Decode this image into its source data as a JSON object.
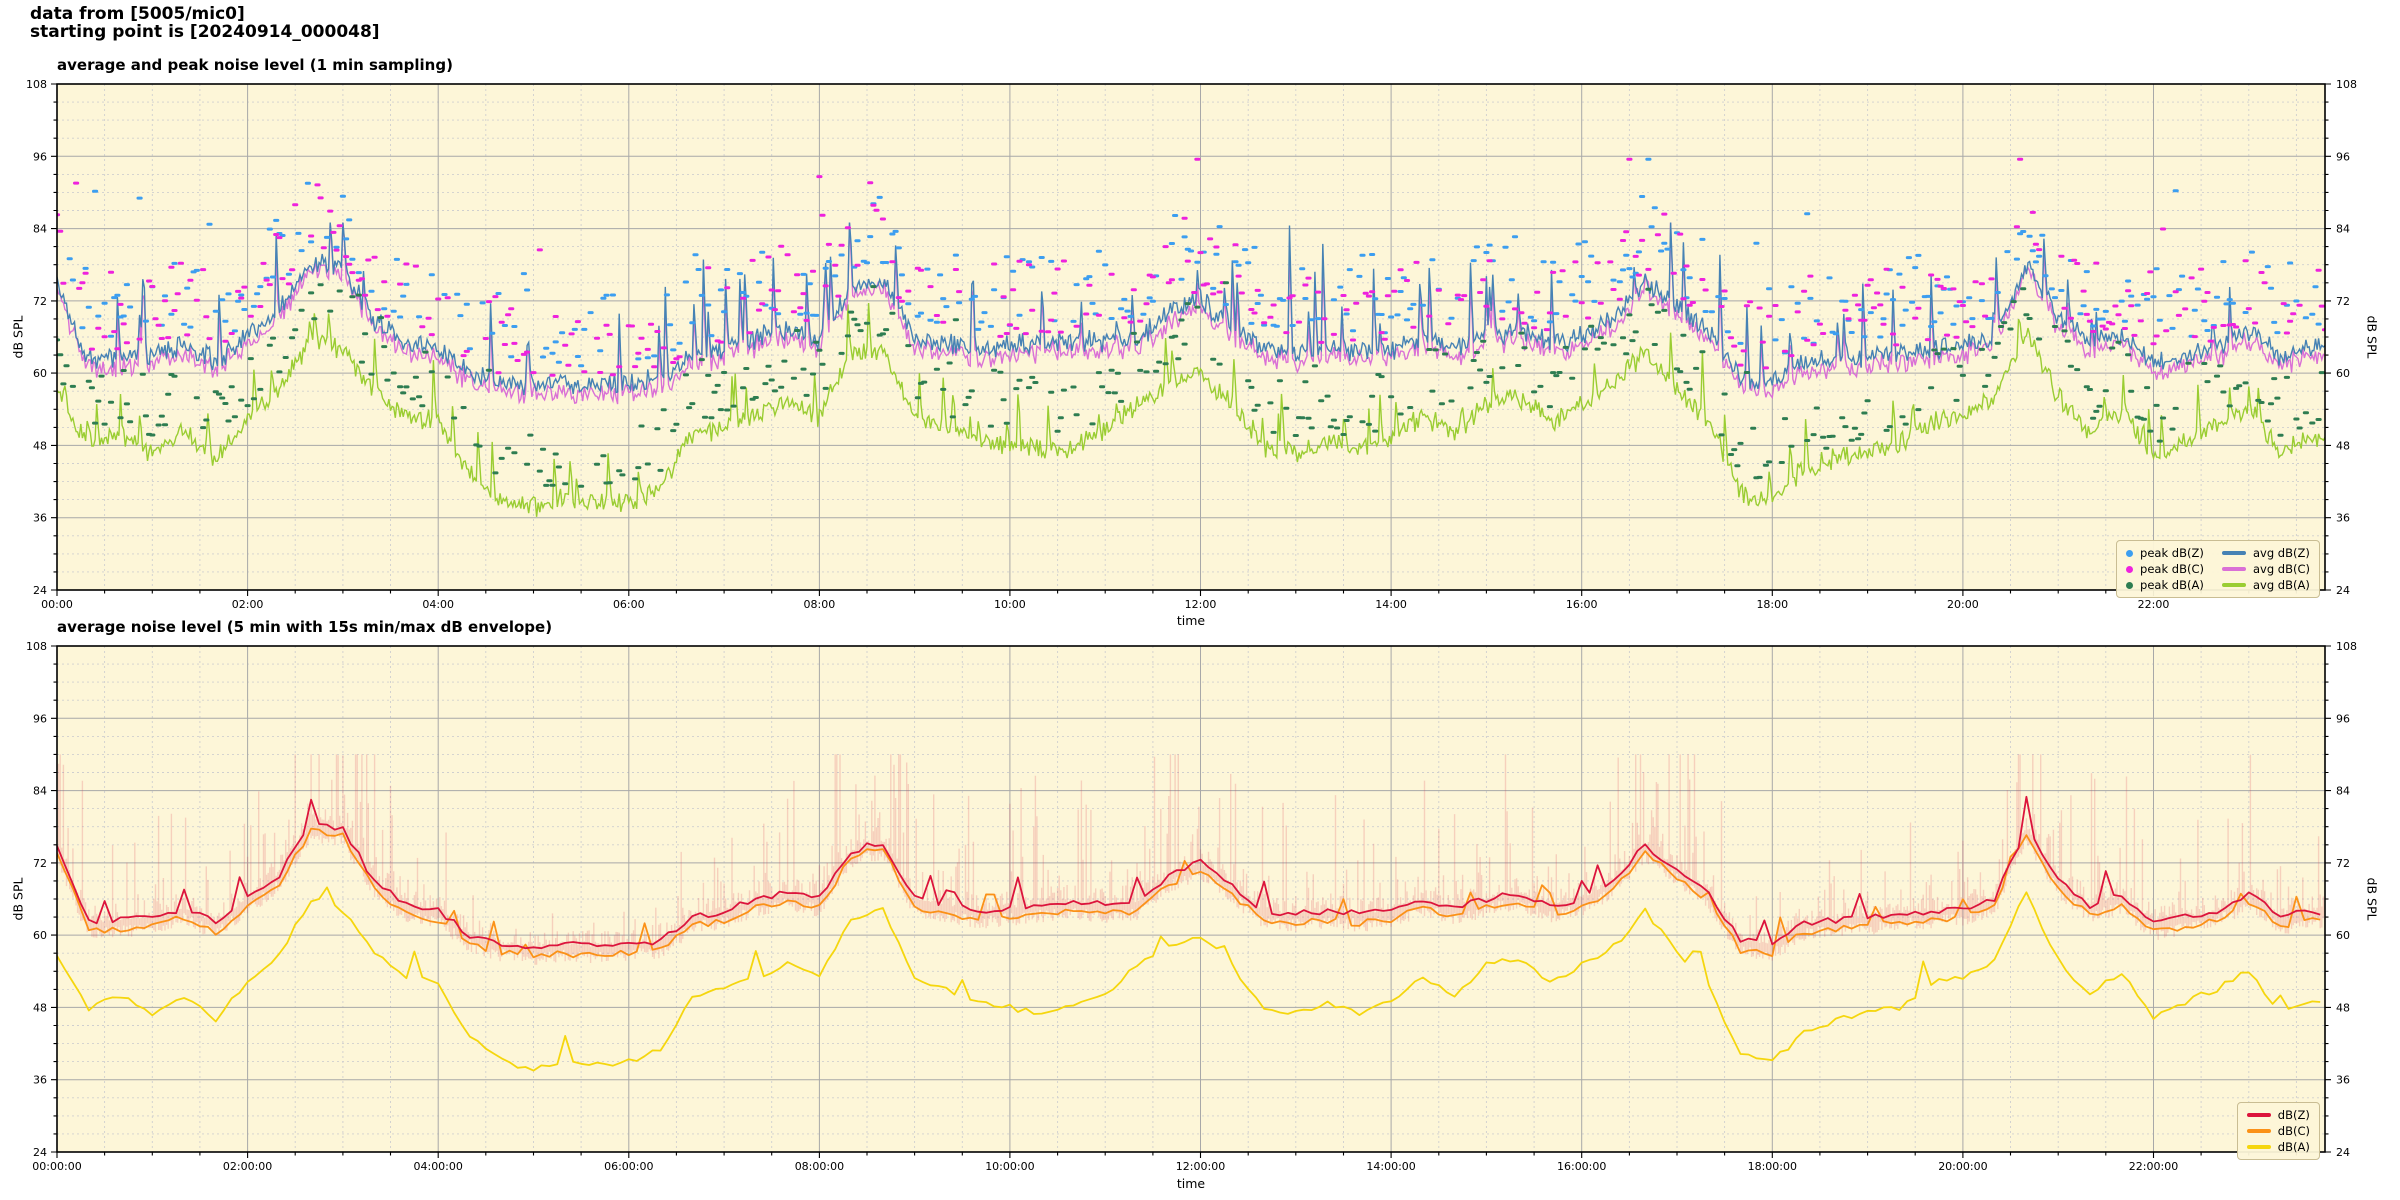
{
  "header": {
    "line1": "data from [5005/mic0]",
    "line2": "starting point is [20240914_000048]"
  },
  "colors": {
    "page_bg": "#ffffff",
    "plot_bg": "#fdf6d8",
    "grid_major": "#a8a8a8",
    "grid_minor": "#cfcfcf",
    "spine": "#000000",
    "text": "#000000",
    "legend_bg": "#fdf6d8",
    "legend_border": "#c9bd93"
  },
  "chart_data": {
    "x_unit": "hours",
    "x_range": [
      0,
      23.8
    ],
    "sample_step_min": 20,
    "series_base": {
      "avg_dbz": [
        75,
        62,
        62.5,
        63,
        64.5,
        62,
        66,
        70,
        78.5,
        77.5,
        69,
        65,
        64,
        60,
        58.5,
        58,
        58.5,
        58,
        58.5,
        59,
        63,
        64,
        66,
        67,
        66,
        74,
        75.5,
        66,
        65,
        64,
        64.5,
        65,
        65.5,
        65,
        65.5,
        70,
        72,
        68,
        64,
        63.5,
        64,
        63.5,
        64,
        66,
        64.5,
        66,
        67,
        65,
        66,
        69,
        75,
        71,
        67,
        59,
        58.5,
        62,
        62.5,
        63,
        63.5,
        64,
        64.5,
        66,
        78,
        69,
        65,
        66.5,
        62,
        63,
        64,
        67,
        63,
        64,
        63
      ],
      "avg_dbc": [
        74,
        60.5,
        61,
        61.5,
        63,
        60.5,
        64.5,
        68.5,
        77.5,
        76.5,
        67.5,
        63.5,
        62.5,
        58.5,
        57,
        56.5,
        57,
        56.5,
        57,
        57.5,
        61.5,
        62.5,
        64.5,
        65.5,
        64.5,
        73,
        74.5,
        64.5,
        63.5,
        62.5,
        63,
        63.5,
        64,
        63.5,
        64,
        68.5,
        70.5,
        66.5,
        62.5,
        62,
        62.5,
        62,
        62.5,
        64.5,
        63,
        64.5,
        65.5,
        63.5,
        64.5,
        67.5,
        74,
        69.5,
        65.5,
        57.5,
        57,
        60.5,
        61,
        61.5,
        62,
        62.5,
        63,
        64.5,
        77,
        67.5,
        63.5,
        65,
        60.5,
        61.5,
        62.5,
        65.5,
        61.5,
        62.5,
        61.5
      ],
      "avg_dba": [
        57,
        48,
        50,
        47,
        50,
        46,
        52,
        57,
        66,
        64,
        57,
        53,
        52,
        43,
        39,
        38,
        39,
        38.5,
        39,
        41,
        50,
        51,
        53,
        55,
        53,
        63,
        64,
        53,
        51,
        49,
        48,
        47,
        48,
        50,
        55,
        58,
        60,
        55,
        48,
        47,
        48.5,
        47,
        49,
        53,
        50,
        55,
        56,
        52,
        55,
        58,
        64,
        57,
        52,
        40,
        39,
        44,
        46,
        47,
        48,
        52,
        53,
        56,
        67,
        56,
        50,
        54,
        46,
        49,
        51,
        54,
        47,
        49,
        47
      ]
    },
    "charts": [
      {
        "type": "line+scatter",
        "title": "average and peak noise level (1 min sampling)",
        "xlabel": "time",
        "ylabel_left": "dB SPL",
        "ylabel_right": "dB SPL",
        "ylim": [
          24,
          108
        ],
        "y_major_ticks": [
          24,
          36,
          48,
          60,
          72,
          84,
          96,
          108
        ],
        "y_minor_step": 3,
        "x_major_tick_hours": [
          0,
          2,
          4,
          6,
          8,
          10,
          12,
          14,
          16,
          18,
          20,
          22
        ],
        "x_tick_labels": [
          "00:00",
          "02:00",
          "04:00",
          "06:00",
          "08:00",
          "10:00",
          "12:00",
          "14:00",
          "16:00",
          "18:00",
          "20:00",
          "22:00"
        ],
        "x_minor_step_hours": 0.5,
        "legend": [
          {
            "label": "peak dB(Z)",
            "type": "dot",
            "color": "#3c9ef0"
          },
          {
            "label": "avg dB(Z)",
            "type": "line",
            "color": "#4682B4"
          },
          {
            "label": "peak dB(C)",
            "type": "dot",
            "color": "#ee22dd"
          },
          {
            "label": "avg dB(C)",
            "type": "line",
            "color": "#DA70D6"
          },
          {
            "label": "peak dB(A)",
            "type": "dot",
            "color": "#2e7d51"
          },
          {
            "label": "avg dB(A)",
            "type": "line",
            "color": "#9ACD32"
          }
        ],
        "series": [
          {
            "name": "avg dB(A)",
            "base": "avg_dba",
            "color": "#9ACD32"
          },
          {
            "name": "avg dB(C)",
            "base": "avg_dbc",
            "color": "#DA70D6"
          },
          {
            "name": "avg dB(Z)",
            "base": "avg_dbz",
            "color": "#4682B4"
          }
        ],
        "scatter": [
          {
            "name": "peak dB(Z)",
            "base": "avg_dbz",
            "color": "#3c9ef0",
            "offset_db": [
              3,
              16
            ]
          },
          {
            "name": "peak dB(C)",
            "base": "avg_dbc",
            "color": "#ee22dd",
            "offset_db": [
              3,
              16
            ]
          },
          {
            "name": "peak dB(A)",
            "base": "avg_dba",
            "color": "#2e7d51",
            "offset_db": [
              2.5,
              12.5
            ]
          }
        ],
        "render_hints": {
          "line_noise_db": 1.1,
          "shared_noise_db": 1.0,
          "spike_prob": 0.045,
          "spike_db": [
            4,
            14
          ],
          "mega_spike_prob": 0.004,
          "mega_spike_db": [
            14,
            22
          ],
          "a_spike_prob": 0.05,
          "a_spike_db": [
            3,
            9
          ],
          "scatter_step_min": 2,
          "scatter_prob": 0.55,
          "outlier_prob": 0.025,
          "outlier_extra_db": [
            10,
            22
          ]
        }
      },
      {
        "type": "line+envelope",
        "title": "average noise level (5 min with 15s min/max dB envelope)",
        "xlabel": "time",
        "ylabel_left": "dB SPL",
        "ylabel_right": "dB SPL",
        "ylim": [
          24,
          108
        ],
        "y_major_ticks": [
          24,
          36,
          48,
          60,
          72,
          84,
          96,
          108
        ],
        "y_minor_step": 3,
        "x_major_tick_hours": [
          0,
          2,
          4,
          6,
          8,
          10,
          12,
          14,
          16,
          18,
          20,
          22
        ],
        "x_tick_labels": [
          "00:00:00",
          "02:00:00",
          "04:00:00",
          "06:00:00",
          "08:00:00",
          "10:00:00",
          "12:00:00",
          "14:00:00",
          "16:00:00",
          "18:00:00",
          "20:00:00",
          "22:00:00"
        ],
        "x_minor_step_hours": 0.5,
        "legend": [
          {
            "label": "dB(Z)",
            "type": "line",
            "color": "#DC143C"
          },
          {
            "label": "dB(C)",
            "type": "line",
            "color": "#fb9117"
          },
          {
            "label": "dB(A)",
            "type": "line",
            "color": "#f5d60e"
          }
        ],
        "series": [
          {
            "name": "dB(A)",
            "base": "avg_dba",
            "color": "#f5d60e"
          },
          {
            "name": "dB(C)",
            "base": "avg_dbc",
            "color": "#fb9117"
          },
          {
            "name": "dB(Z)",
            "base": "avg_dbz",
            "color": "#DC143C"
          }
        ],
        "envelope": {
          "around": "avg_dbz",
          "color": "#dc3c50",
          "alpha": 0.2,
          "burst_prob": 0.22,
          "up_db": [
            4,
            22
          ],
          "calm_up_db": 3,
          "down_db": [
            0.8,
            3
          ]
        },
        "render_hints": {
          "step_min": 5,
          "noise_db": 0.55,
          "bump_prob": 0.05,
          "bump_db": [
            2,
            5
          ]
        }
      }
    ]
  }
}
